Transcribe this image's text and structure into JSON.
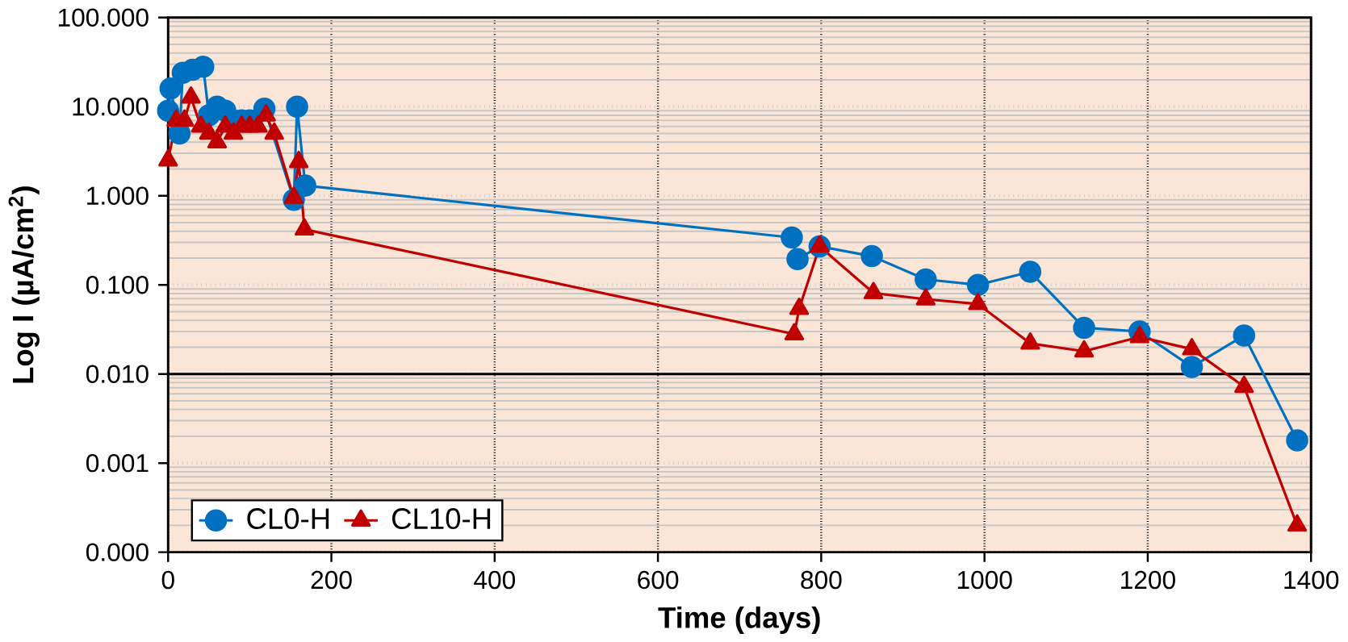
{
  "chart_data": {
    "type": "line",
    "xlabel": "Time (days)",
    "ylabel": "Log I (µA/cm$^{2}$)",
    "log": "y",
    "grid": true,
    "legend": "bottom left",
    "line_style": "solid",
    "xlim": [
      0,
      1400
    ],
    "xticks": [
      0,
      200,
      400,
      600,
      800,
      1000,
      1200,
      1400
    ],
    "ylim": [
      0.0001,
      100
    ],
    "yticks": [
      {
        "value": 0.0001,
        "label": "0.000"
      },
      {
        "value": 0.001,
        "label": "0.001"
      },
      {
        "value": 0.01,
        "label": "0.010"
      },
      {
        "value": 0.1,
        "label": "0.100"
      },
      {
        "value": 1,
        "label": "1.000"
      },
      {
        "value": 10,
        "label": "10.000"
      },
      {
        "value": 100,
        "label": "100.000"
      }
    ],
    "ref_lines": [
      {
        "axis": "y",
        "value": 0.01,
        "color": "#000000"
      }
    ],
    "series": [
      {
        "name": "CL0-H",
        "color": "#0070c0",
        "marker": "circle",
        "x": [
          0,
          3,
          14,
          18,
          30,
          43,
          50,
          60,
          70,
          80,
          90,
          100,
          118,
          154,
          158,
          168,
          764,
          771,
          798,
          862,
          928,
          992,
          1056,
          1122,
          1190,
          1254,
          1318,
          1383
        ],
        "values": [
          9,
          16,
          5,
          24,
          26,
          28,
          8,
          10,
          9,
          7,
          7,
          7,
          9.5,
          0.9,
          10,
          1.3,
          0.34,
          0.195,
          0.27,
          0.21,
          0.115,
          0.1,
          0.14,
          0.033,
          0.03,
          0.012,
          0.027,
          0.0018
        ]
      },
      {
        "name": "CL10-H",
        "color": "#c00000",
        "marker": "triangle",
        "x": [
          0,
          10,
          20,
          28,
          40,
          50,
          60,
          70,
          80,
          90,
          100,
          110,
          120,
          130,
          154,
          160,
          167,
          767,
          773,
          798,
          864,
          928,
          992,
          1056,
          1122,
          1190,
          1254,
          1318,
          1383
        ],
        "values": [
          2.5,
          7,
          7,
          12.7,
          6,
          5,
          4,
          6,
          5,
          6,
          6,
          6,
          8,
          5,
          0.95,
          2.4,
          0.42,
          0.028,
          0.054,
          0.27,
          0.081,
          0.069,
          0.061,
          0.022,
          0.018,
          0.026,
          0.019,
          0.0072,
          0.0002
        ]
      }
    ]
  }
}
